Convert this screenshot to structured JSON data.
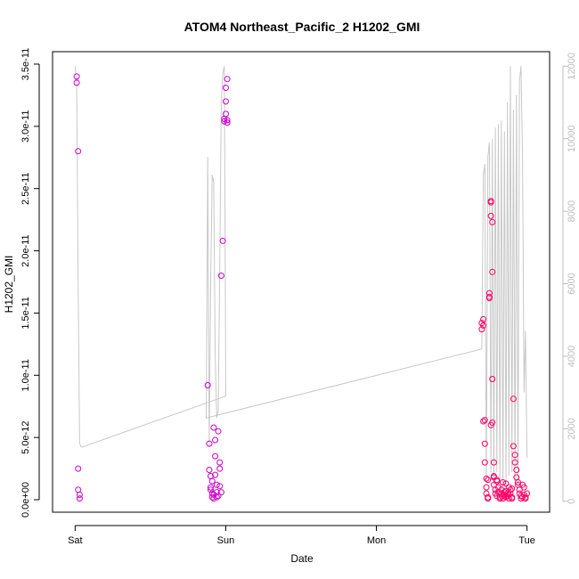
{
  "chart_data": {
    "type": "scatter",
    "title": "ATOM4 Northeast_Pacific_2 H1202_GMI",
    "xlabel": "Date",
    "ylabel": "H1202_GMI",
    "x_ticks": [
      "Sat",
      "Sun",
      "Mon",
      "Tue"
    ],
    "x_tick_values": [
      0,
      1,
      2,
      3
    ],
    "xlim": [
      -0.15,
      3.15
    ],
    "ylim": [
      -1e-12,
      3.6e-11
    ],
    "y_ticks": [
      0,
      5e-12,
      1e-11,
      1.5e-11,
      2e-11,
      2.5e-11,
      3e-11,
      3.5e-11
    ],
    "y_tick_labels": [
      "0.0e+00",
      "5.0e-12",
      "1.0e-11",
      "1.5e-11",
      "2.0e-11",
      "2.5e-11",
      "3.0e-11",
      "3.5e-11"
    ],
    "y2_ticks": [
      0,
      2000,
      4000,
      6000,
      8000,
      10000,
      12000
    ],
    "y2_tick_labels": [
      "0",
      "2000",
      "4000",
      "6000",
      "8000",
      "10000",
      "12000"
    ],
    "y2lim": [
      -300,
      12400
    ],
    "grid": false,
    "colors": {
      "points_early": "#cc00cc",
      "points_late": "#ff0066",
      "altitude_line": "#c8c8c8",
      "right_axis": "#bdbdbd"
    },
    "series": [
      {
        "type": "scatter",
        "x": [
          0.01,
          0.01,
          0.02,
          0.02,
          0.02,
          0.03,
          0.03,
          0.88,
          0.89,
          0.89,
          0.9,
          0.9,
          0.91,
          0.91,
          0.92,
          0.92,
          0.93,
          0.93,
          0.93,
          0.94,
          0.94,
          0.95,
          0.95,
          0.96,
          0.96,
          0.97,
          0.98,
          0.99,
          0.99,
          1.0,
          1.0,
          1.0,
          1.01,
          1.01,
          1.01,
          0.9,
          0.91,
          0.92,
          0.94,
          0.96,
          0.97
        ],
        "y": [
          3.4e-11,
          3.35e-11,
          2.8e-11,
          2.5e-12,
          8e-13,
          4e-13,
          1e-13,
          9.2e-12,
          4.5e-12,
          2.4e-12,
          1.9e-12,
          1e-12,
          5e-13,
          2e-13,
          1e-13,
          5.8e-12,
          4.8e-12,
          3.5e-12,
          2e-12,
          1.2e-12,
          6e-13,
          3e-13,
          5.5e-12,
          3e-12,
          2.5e-12,
          1.8e-11,
          2.08e-11,
          3.06e-11,
          3.04e-11,
          3.1e-11,
          3.2e-11,
          3.31e-11,
          3.38e-11,
          3.03e-11,
          3.05e-11,
          8e-13,
          1.5e-12,
          4e-13,
          2e-13,
          1.1e-12,
          6e-13
        ]
      },
      {
        "type": "scatter",
        "x": [
          2.7,
          2.7,
          2.71,
          2.71,
          2.71,
          2.72,
          2.72,
          2.72,
          2.73,
          2.73,
          2.73,
          2.74,
          2.74,
          2.75,
          2.75,
          2.75,
          2.76,
          2.76,
          2.76,
          2.77,
          2.77,
          2.77,
          2.77,
          2.78,
          2.78,
          2.78,
          2.79,
          2.79,
          2.8,
          2.8,
          2.81,
          2.81,
          2.82,
          2.82,
          2.83,
          2.83,
          2.84,
          2.84,
          2.85,
          2.85,
          2.86,
          2.86,
          2.87,
          2.87,
          2.88,
          2.88,
          2.89,
          2.89,
          2.9,
          2.9,
          2.91,
          2.91,
          2.92,
          2.92,
          2.93,
          2.93,
          2.94,
          2.94,
          2.95,
          2.95,
          2.96,
          2.96,
          2.97,
          2.97,
          2.98,
          2.98,
          2.99,
          2.99,
          3.0,
          2.74,
          2.76,
          2.78,
          2.8,
          2.84,
          2.86,
          2.88,
          2.9
        ],
        "y": [
          1.37e-11,
          1.42e-11,
          1.45e-11,
          1.4e-11,
          6.3e-12,
          6.4e-12,
          4.5e-12,
          3e-12,
          1.7e-12,
          1e-12,
          5e-13,
          2e-13,
          1e-13,
          1.66e-11,
          1.63e-11,
          1.62e-11,
          2.4e-11,
          2.39e-11,
          2.28e-11,
          2.23e-11,
          1.83e-11,
          9.7e-12,
          6.2e-12,
          3e-12,
          1.8e-12,
          1.2e-12,
          8e-13,
          5e-13,
          3e-13,
          1.5e-12,
          1e-12,
          6e-13,
          2e-13,
          1e-13,
          8e-13,
          5e-13,
          3e-13,
          1e-13,
          6e-13,
          4e-13,
          2e-13,
          7e-13,
          5e-13,
          3e-13,
          1e-13,
          4e-13,
          8e-13,
          5e-13,
          2e-13,
          1e-13,
          8.1e-12,
          4.3e-12,
          3.6e-12,
          3e-12,
          2.4e-12,
          1.8e-12,
          1.4e-12,
          1.2e-12,
          8e-13,
          5e-13,
          3e-13,
          1e-13,
          2e-13,
          1.2e-12,
          1e-12,
          4e-13,
          2e-13,
          1e-13,
          5e-13,
          1.6e-12,
          6e-12,
          1.9e-12,
          1.6e-12,
          1.4e-12,
          1.3e-12,
          1e-12,
          9e-13
        ]
      },
      {
        "type": "line",
        "axis": "right",
        "x": [
          0.0,
          0.01,
          0.02,
          0.03,
          0.04,
          0.05,
          1.0,
          0.99,
          0.98,
          0.97,
          0.96,
          0.95,
          0.94,
          0.93,
          0.92,
          0.91,
          0.9,
          0.89,
          0.88,
          0.87,
          2.7,
          2.71,
          2.72,
          2.73,
          2.74,
          2.75,
          2.76,
          2.77,
          2.78,
          2.79,
          2.8,
          2.81,
          2.82,
          2.83,
          2.84,
          2.85,
          2.86,
          2.87,
          2.88,
          2.89,
          2.9,
          2.91,
          2.92,
          2.93,
          2.94,
          2.95,
          2.96,
          2.97,
          2.98,
          2.99,
          3.0
        ],
        "y": [
          12000,
          11500,
          6000,
          1600,
          1500,
          1500,
          2900,
          12000,
          11800,
          11000,
          6500,
          2500,
          2300,
          4000,
          8800,
          9000,
          6000,
          1500,
          9500,
          2300,
          4200,
          9000,
          9300,
          500,
          9500,
          9900,
          800,
          10000,
          400,
          10300,
          800,
          10400,
          400,
          10500,
          200,
          10200,
          400,
          11000,
          700,
          12000,
          800,
          10800,
          500,
          11200,
          400,
          11600,
          12000,
          9500,
          3000,
          4700,
          1200
        ]
      }
    ]
  }
}
